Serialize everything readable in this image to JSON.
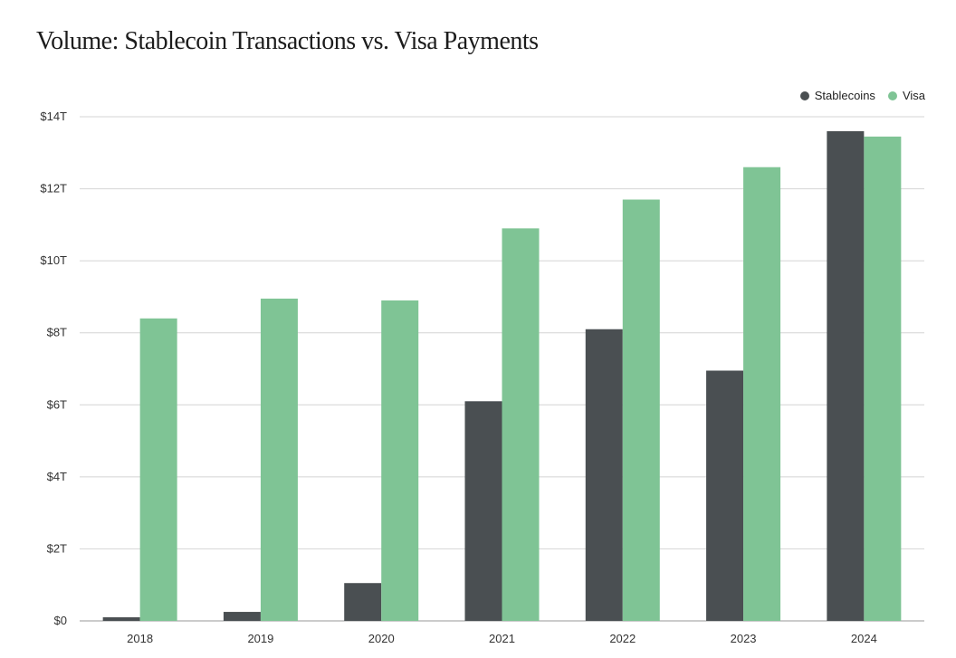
{
  "colors": {
    "stablecoins": "#4a4f52",
    "visa": "#7fc495",
    "grid": "#d4d4d4"
  },
  "chart_data": {
    "type": "bar",
    "title": "Volume: Stablecoin Transactions vs. Visa Payments",
    "xlabel": "",
    "ylabel": "",
    "categories": [
      "2018",
      "2019",
      "2020",
      "2021",
      "2022",
      "2023",
      "2024"
    ],
    "series": [
      {
        "name": "Stablecoins",
        "values": [
          0.1,
          0.25,
          1.05,
          6.1,
          8.1,
          6.95,
          13.6
        ]
      },
      {
        "name": "Visa",
        "values": [
          8.4,
          8.95,
          8.9,
          10.9,
          11.7,
          12.6,
          13.45
        ]
      }
    ],
    "ylim": [
      0,
      14
    ],
    "yticks": [
      0,
      2,
      4,
      6,
      8,
      10,
      12,
      14
    ],
    "ytick_labels": [
      "$0",
      "$2T",
      "$4T",
      "$6T",
      "$8T",
      "$10T",
      "$12T",
      "$14T"
    ],
    "grid": true,
    "legend_position": "top-right"
  }
}
